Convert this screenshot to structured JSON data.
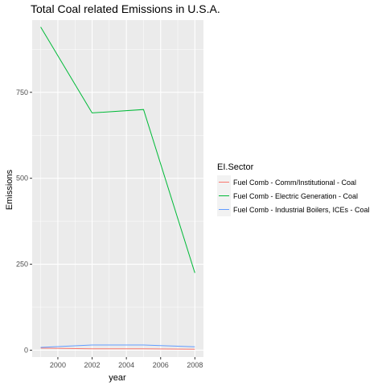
{
  "chart_data": {
    "type": "line",
    "title": "Total Coal related Emissions in U.S.A.",
    "xlabel": "year",
    "ylabel": "Emissions",
    "x": [
      1999,
      2002,
      2005,
      2008
    ],
    "xticks": [
      2000,
      2002,
      2004,
      2006,
      2008
    ],
    "yticks": [
      0,
      250,
      500,
      750
    ],
    "xlim": [
      1998.5,
      2008.5
    ],
    "ylim": [
      -20,
      960
    ],
    "grid": true,
    "legend": {
      "title": "EI.Sector",
      "placement": "right"
    },
    "series": [
      {
        "name": "Fuel Comb - Comm/Institutional - Coal",
        "color": "#F8766D",
        "values": [
          6,
          4,
          4,
          3
        ]
      },
      {
        "name": "Fuel Comb - Electric Generation - Coal",
        "color": "#00BA38",
        "values": [
          940,
          690,
          700,
          225
        ]
      },
      {
        "name": "Fuel Comb - Industrial Boilers, ICEs - Coal",
        "color": "#619CFF",
        "values": [
          8,
          15,
          15,
          10
        ]
      }
    ]
  }
}
